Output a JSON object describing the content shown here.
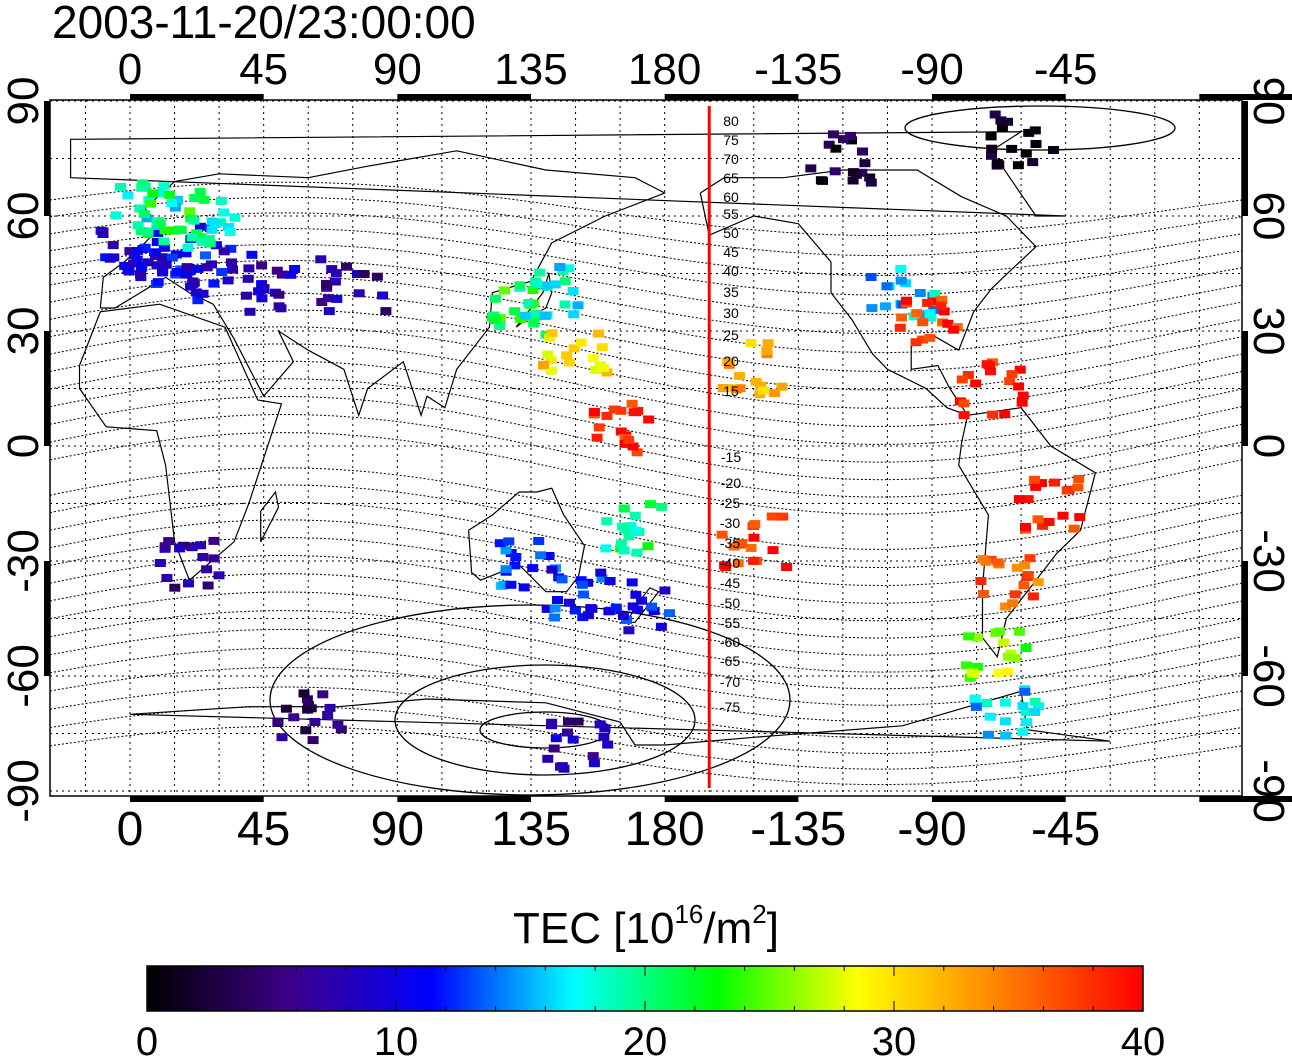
{
  "timestamp": "2003-11-20/23:00:00",
  "map": {
    "x_tick_labels": [
      "0",
      "45",
      "90",
      "135",
      "180",
      "-135",
      "-90",
      "-45"
    ],
    "y_tick_labels": [
      "90",
      "60",
      "30",
      "0",
      "-30",
      "-60",
      "-90"
    ],
    "contour_labels": [
      "80",
      "75",
      "70",
      "65",
      "60",
      "55",
      "50",
      "45",
      "40",
      "35",
      "30",
      "25",
      "20",
      "15",
      "-15",
      "-20",
      "-25",
      "-30",
      "-35",
      "-40",
      "-45",
      "-50",
      "-55",
      "-60",
      "-65",
      "-70",
      "-75"
    ],
    "terminator_longitude": -165,
    "terminator_color": "#ff0000",
    "tec_samples": [
      {
        "lon": 0,
        "lat": 50,
        "tec": 9
      },
      {
        "lon": 10,
        "lat": 48,
        "tec": 10
      },
      {
        "lon": 20,
        "lat": 52,
        "tec": 11
      },
      {
        "lon": 5,
        "lat": 62,
        "tec": 18
      },
      {
        "lon": 15,
        "lat": 60,
        "tec": 22
      },
      {
        "lon": 25,
        "lat": 58,
        "tec": 19
      },
      {
        "lon": 30,
        "lat": 45,
        "tec": 10
      },
      {
        "lon": 45,
        "lat": 42,
        "tec": 8
      },
      {
        "lon": 75,
        "lat": 42,
        "tec": 7
      },
      {
        "lon": 130,
        "lat": 36,
        "tec": 22
      },
      {
        "lon": 140,
        "lat": 40,
        "tec": 18
      },
      {
        "lon": 150,
        "lat": 25,
        "tec": 30
      },
      {
        "lon": 165,
        "lat": 5,
        "tec": 38
      },
      {
        "lon": -100,
        "lat": 40,
        "tec": 16
      },
      {
        "lon": -90,
        "lat": 32,
        "tec": 38
      },
      {
        "lon": -70,
        "lat": 15,
        "tec": 39
      },
      {
        "lon": -50,
        "lat": -15,
        "tec": 39
      },
      {
        "lon": -65,
        "lat": -35,
        "tec": 36
      },
      {
        "lon": -68,
        "lat": -55,
        "tec": 26
      },
      {
        "lon": -65,
        "lat": -70,
        "tec": 16
      },
      {
        "lon": 135,
        "lat": -30,
        "tec": 13
      },
      {
        "lon": 148,
        "lat": -38,
        "tec": 12
      },
      {
        "lon": 172,
        "lat": -42,
        "tec": 11
      },
      {
        "lon": 168,
        "lat": -22,
        "tec": 20
      },
      {
        "lon": -150,
        "lat": 20,
        "tec": 32
      },
      {
        "lon": -150,
        "lat": -25,
        "tec": 38
      },
      {
        "lon": 20,
        "lat": -30,
        "tec": 6
      },
      {
        "lon": 60,
        "lat": -70,
        "tec": 5
      },
      {
        "lon": 150,
        "lat": -78,
        "tec": 7
      },
      {
        "lon": -120,
        "lat": 75,
        "tec": 2
      },
      {
        "lon": -60,
        "lat": 80,
        "tec": 1
      }
    ]
  },
  "colorbar": {
    "title_prefix": "TEC  [10",
    "title_exp1": "16",
    "title_mid": "/m",
    "title_exp2": "2",
    "title_suffix": "]",
    "tick_labels": [
      "0",
      "10",
      "20",
      "30",
      "40"
    ],
    "min": 0,
    "max": 40,
    "stops": [
      "#000000",
      "#3d0088",
      "#0000ff",
      "#00ffff",
      "#00ff00",
      "#ffff00",
      "#ff8000",
      "#ff0000"
    ]
  }
}
